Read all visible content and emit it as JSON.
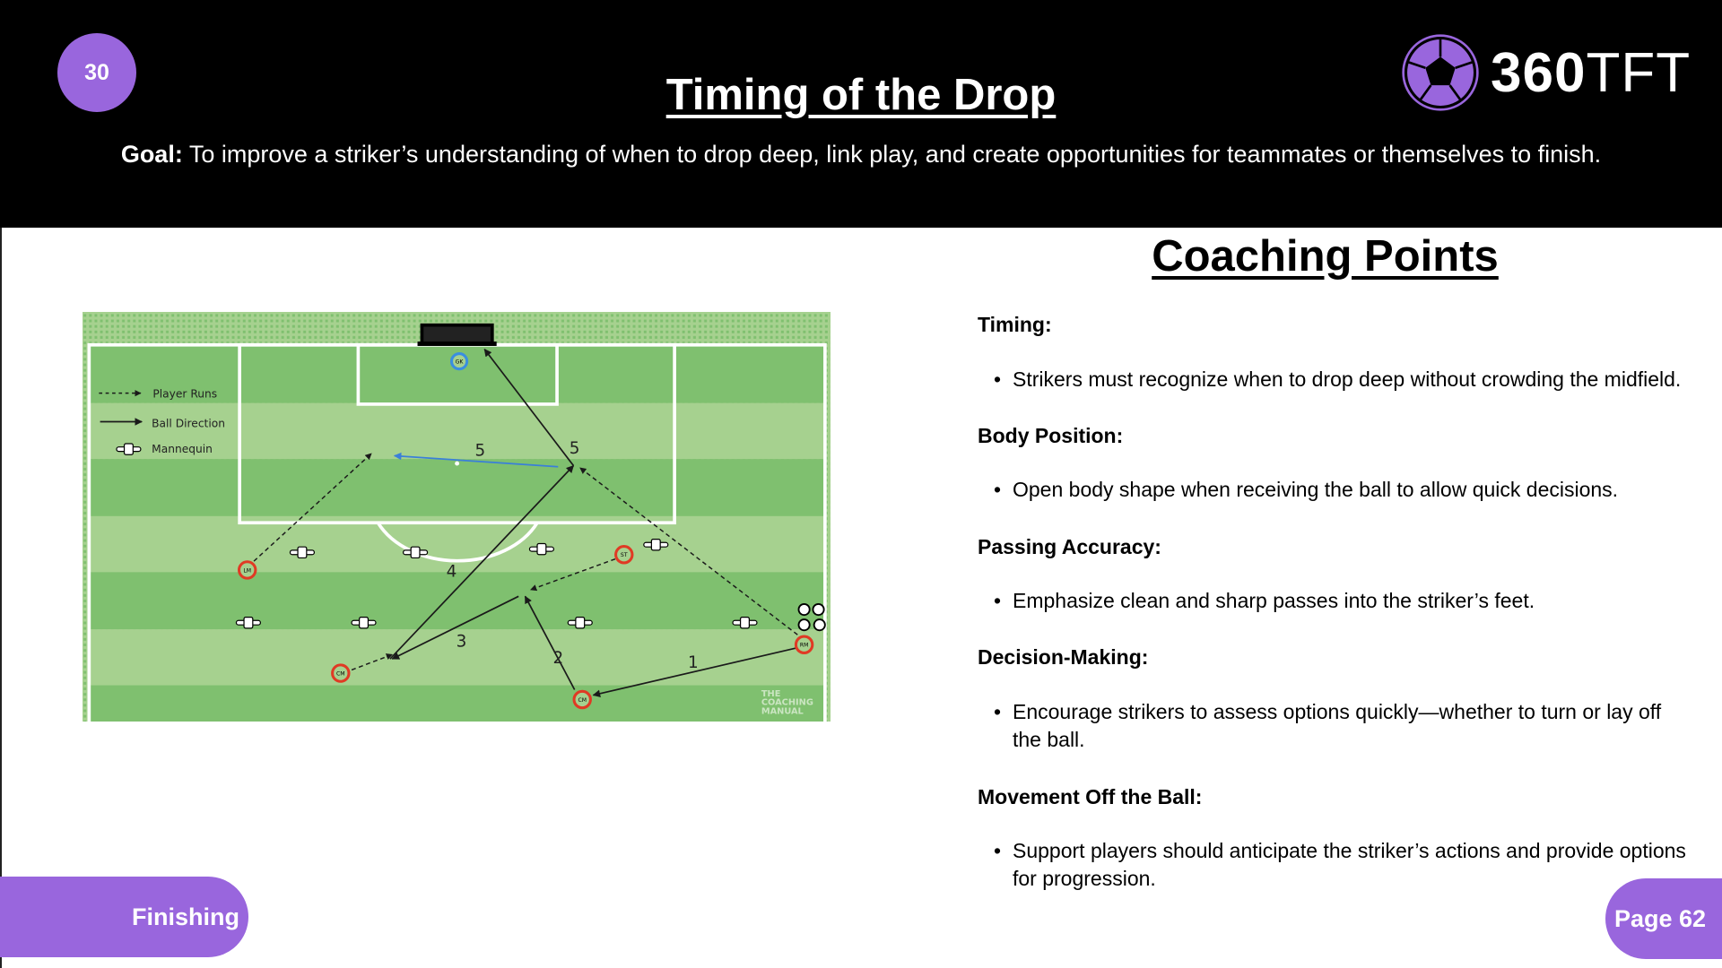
{
  "header": {
    "drill_number": "30",
    "title": "Timing of the Drop",
    "goal_label": "Goal:",
    "goal_text": " To improve a striker’s understanding of when to drop deep, link play, and create opportunities for teammates or themselves to finish.",
    "logo": {
      "bold": "360",
      "light": "TFT",
      "icon": "soccer-ball-icon"
    }
  },
  "diagram": {
    "legend": {
      "player_runs": "Player Runs",
      "ball_direction": "Ball Direction",
      "mannequin": "Mannequin"
    },
    "players": {
      "gk": "GK",
      "lm": "LM",
      "st": "ST",
      "rm": "RM",
      "cm1": "CM",
      "cm2": "CM"
    },
    "step_labels": {
      "s1": "1",
      "s2": "2",
      "s3": "3",
      "s4": "4",
      "s5a": "5",
      "s5b": "5"
    },
    "watermark": [
      "THE",
      "COACHING",
      "MANUAL"
    ],
    "colors": {
      "pitch_dark": "#7fc06f",
      "pitch_light": "#a6d18f",
      "player_ring": "#e03a24",
      "gk_ring": "#3a8ee0",
      "pass_blue": "#3a7fd9"
    }
  },
  "coaching": {
    "title": "Coaching Points",
    "sections": [
      {
        "heading": "Timing:",
        "bullet": "Strikers must recognize when to drop deep without crowding the midfield."
      },
      {
        "heading": "Body Position:",
        "bullet": "Open body shape when receiving the ball to allow quick decisions."
      },
      {
        "heading": "Passing Accuracy:",
        "bullet": "Emphasize clean and sharp passes into the striker’s feet."
      },
      {
        "heading": "Decision-Making:",
        "bullet": "Encourage strikers to assess options quickly—whether to turn or lay off the ball."
      },
      {
        "heading": "Movement Off the Ball:",
        "bullet": "Support players should anticipate the striker’s actions and provide options for progression."
      }
    ]
  },
  "footer": {
    "category": "Finishing",
    "page": "Page 62"
  },
  "colors": {
    "accent": "#9966dd",
    "header_bg": "#000000"
  }
}
